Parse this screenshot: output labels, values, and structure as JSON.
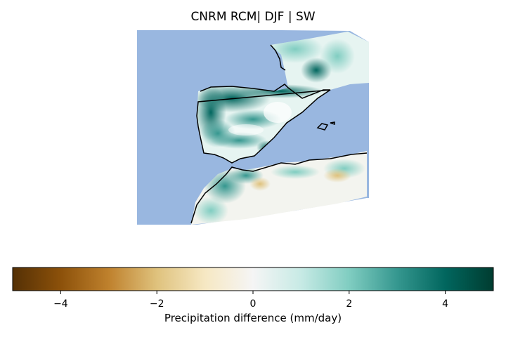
{
  "title": "CNRM RCM| DJF | SW",
  "colorbar": {
    "label": "Precipitation difference (mm/day)",
    "min": -5,
    "max": 5,
    "ticks": [
      -4,
      -2,
      0,
      2,
      4
    ],
    "tick_labels": [
      "−4",
      "−2",
      "0",
      "2",
      "4"
    ],
    "colormap": "BrBG",
    "stops": [
      "#543005",
      "#8c510a",
      "#bf812d",
      "#dfc27d",
      "#f6e8c3",
      "#f5f5f5",
      "#c7eae5",
      "#80cdc1",
      "#35978f",
      "#01665e",
      "#003c30"
    ]
  },
  "map": {
    "ocean_color": "#99b7e0",
    "coastline_color": "#000000",
    "region": "Iberian Peninsula and North Africa"
  }
}
